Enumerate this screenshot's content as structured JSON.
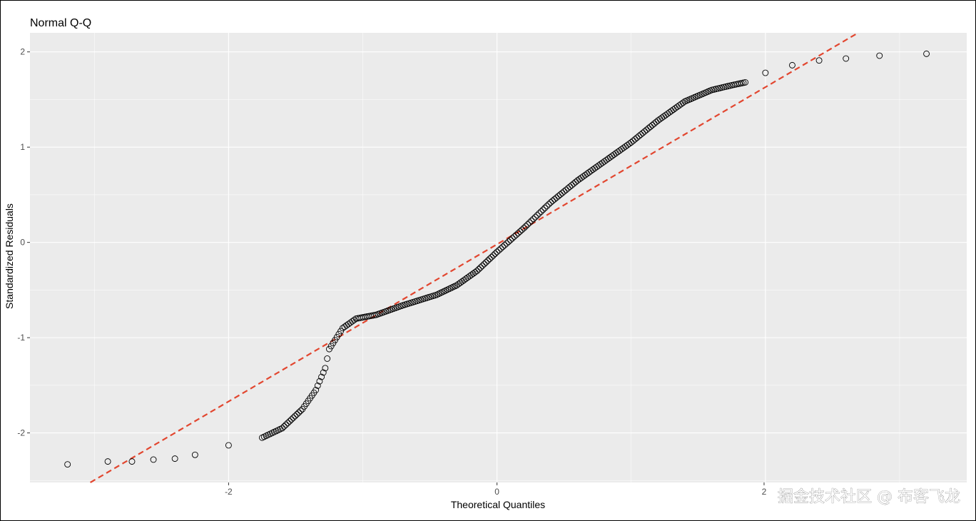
{
  "chart_data": {
    "type": "scatter",
    "title": "Normal Q-Q",
    "xlabel": "Theoretical Quantiles",
    "ylabel": "Standardized Residuals",
    "xlim": [
      -3.48,
      3.5
    ],
    "ylim": [
      -2.52,
      2.2
    ],
    "x_ticks": [
      -2,
      0,
      1.99
    ],
    "x_tick_labels": [
      "-2",
      "0",
      "2"
    ],
    "y_ticks": [
      -2,
      -1,
      0,
      1,
      2
    ],
    "y_tick_labels": [
      "-2",
      "-1",
      "0",
      "1",
      "2"
    ],
    "grid": true,
    "panel_background": "#ebebeb",
    "point_stroke": "#000000",
    "reference_line": {
      "slope": 0.825,
      "intercept": -0.02,
      "color": "#e2462f",
      "style": "dashed"
    },
    "sample_quantiles": [
      [
        -3.2,
        -2.33
      ],
      [
        -2.9,
        -2.3
      ],
      [
        -2.72,
        -2.3
      ],
      [
        -2.56,
        -2.28
      ],
      [
        -2.4,
        -2.27
      ],
      [
        -2.25,
        -2.23
      ],
      [
        -2.0,
        -2.13
      ],
      [
        -1.75,
        -2.05
      ],
      [
        -1.6,
        -1.95
      ],
      [
        -1.45,
        -1.75
      ],
      [
        -1.35,
        -1.55
      ],
      [
        -1.28,
        -1.32
      ],
      [
        -1.25,
        -1.12
      ],
      [
        -1.15,
        -0.9
      ],
      [
        -1.05,
        -0.8
      ],
      [
        -0.9,
        -0.76
      ],
      [
        -0.7,
        -0.66
      ],
      [
        -0.45,
        -0.55
      ],
      [
        -0.3,
        -0.45
      ],
      [
        -0.15,
        -0.3
      ],
      [
        0.0,
        -0.1
      ],
      [
        0.2,
        0.15
      ],
      [
        0.4,
        0.42
      ],
      [
        0.6,
        0.65
      ],
      [
        0.8,
        0.85
      ],
      [
        1.0,
        1.05
      ],
      [
        1.2,
        1.28
      ],
      [
        1.4,
        1.48
      ],
      [
        1.6,
        1.6
      ],
      [
        1.75,
        1.65
      ],
      [
        1.85,
        1.68
      ],
      [
        2.0,
        1.78
      ],
      [
        2.2,
        1.86
      ],
      [
        2.4,
        1.91
      ],
      [
        2.6,
        1.93
      ],
      [
        2.85,
        1.96
      ],
      [
        3.2,
        1.98
      ]
    ]
  },
  "watermark": {
    "text": "掘金技术社区 @ 布客飞龙"
  }
}
